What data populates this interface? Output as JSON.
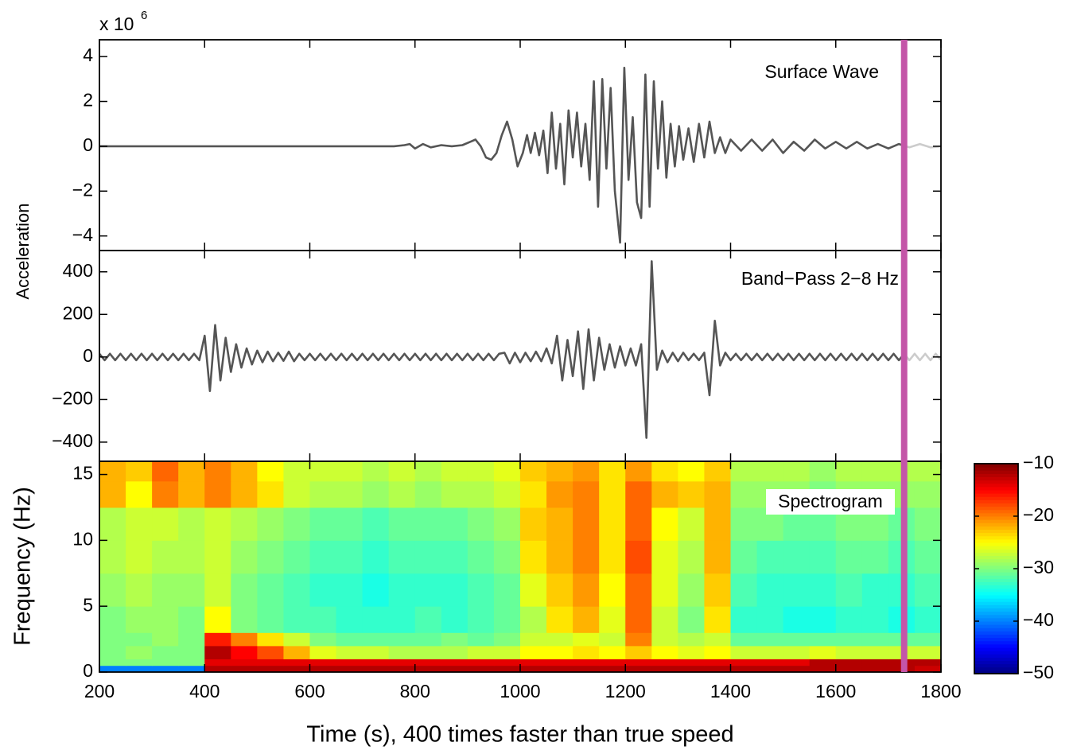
{
  "chart_data": [
    {
      "type": "line",
      "label": "Surface Wave",
      "ylabel": "Acceleration",
      "y_scale_base": "x 10",
      "y_scale_exponent": "6",
      "color": "#555555",
      "future_color": "#cccccc",
      "ylim": [
        -4.65,
        4.75
      ],
      "yticks": [
        {
          "value": -4,
          "label": "−4"
        },
        {
          "value": -2,
          "label": "−2"
        },
        0,
        2,
        4
      ],
      "x": [
        200,
        400,
        600,
        760,
        780,
        790,
        800,
        815,
        830,
        850,
        870,
        890,
        905,
        915,
        925,
        935,
        945,
        955,
        965,
        975,
        985,
        995,
        1005,
        1013,
        1020,
        1028,
        1036,
        1044,
        1052,
        1060,
        1068,
        1076,
        1084,
        1092,
        1100,
        1108,
        1116,
        1124,
        1132,
        1140,
        1148,
        1156,
        1164,
        1172,
        1180,
        1190,
        1198,
        1206,
        1214,
        1222,
        1230,
        1238,
        1246,
        1254,
        1262,
        1270,
        1278,
        1286,
        1294,
        1302,
        1310,
        1320,
        1330,
        1340,
        1350,
        1360,
        1370,
        1380,
        1390,
        1400,
        1420,
        1440,
        1460,
        1480,
        1500,
        1520,
        1540,
        1560,
        1580,
        1600,
        1620,
        1640,
        1660,
        1680,
        1700,
        1720,
        1740,
        1760,
        1780,
        1800
      ],
      "values": [
        0,
        0,
        0,
        0,
        0.05,
        0.1,
        -0.1,
        0.1,
        -0.05,
        0.05,
        0,
        0.05,
        0.2,
        0.3,
        0,
        -0.5,
        -0.6,
        -0.3,
        0.5,
        1.1,
        0.3,
        -0.9,
        -0.3,
        0.5,
        -0.3,
        0.6,
        -0.4,
        0.7,
        -1.2,
        1.5,
        -1.0,
        1.0,
        -1.7,
        1.6,
        -0.5,
        1.5,
        -0.9,
        1.0,
        -1.5,
        2.9,
        -2.7,
        3.0,
        -1.0,
        2.6,
        -2.0,
        -4.3,
        3.5,
        -1.5,
        1.3,
        -2.5,
        -3.2,
        3.2,
        -2.7,
        2.9,
        -1.0,
        2.0,
        -1.4,
        1.0,
        -0.9,
        0.9,
        -0.6,
        0.8,
        -0.7,
        1.0,
        -0.5,
        1.1,
        -0.3,
        0.4,
        -0.3,
        0.3,
        -0.2,
        0.3,
        -0.2,
        0.3,
        -0.3,
        0.2,
        -0.2,
        0.3,
        -0.1,
        0.2,
        -0.1,
        0.2,
        -0.1,
        0.1,
        -0.1,
        0.1,
        -0.05,
        0.1,
        -0.05,
        0
      ]
    },
    {
      "type": "line",
      "label": "Band−Pass 2−8 Hz",
      "color": "#555555",
      "future_color": "#cccccc",
      "ylim": [
        -490,
        500
      ],
      "yticks": [
        {
          "value": -400,
          "label": "−400"
        },
        {
          "value": -200,
          "label": "−200"
        },
        0,
        200,
        400
      ],
      "x": [
        200,
        210,
        220,
        230,
        240,
        250,
        260,
        270,
        280,
        290,
        300,
        310,
        320,
        330,
        340,
        350,
        360,
        370,
        380,
        390,
        400,
        410,
        420,
        430,
        440,
        450,
        460,
        470,
        480,
        490,
        500,
        510,
        520,
        530,
        540,
        550,
        560,
        570,
        580,
        590,
        600,
        610,
        620,
        630,
        640,
        650,
        660,
        670,
        680,
        690,
        700,
        710,
        720,
        730,
        740,
        750,
        760,
        770,
        780,
        790,
        800,
        810,
        820,
        830,
        840,
        850,
        860,
        870,
        880,
        890,
        900,
        910,
        920,
        930,
        940,
        950,
        960,
        970,
        980,
        990,
        1000,
        1010,
        1020,
        1030,
        1040,
        1050,
        1060,
        1070,
        1080,
        1090,
        1100,
        1110,
        1120,
        1130,
        1140,
        1150,
        1160,
        1170,
        1180,
        1190,
        1200,
        1210,
        1220,
        1230,
        1240,
        1250,
        1260,
        1270,
        1280,
        1290,
        1300,
        1310,
        1320,
        1330,
        1340,
        1350,
        1360,
        1370,
        1380,
        1390,
        1400,
        1410,
        1420,
        1430,
        1440,
        1450,
        1460,
        1470,
        1480,
        1490,
        1500,
        1510,
        1520,
        1530,
        1540,
        1550,
        1560,
        1570,
        1580,
        1590,
        1600,
        1610,
        1620,
        1630,
        1640,
        1650,
        1660,
        1670,
        1680,
        1690,
        1700,
        1710,
        1720,
        1730,
        1740,
        1750,
        1760,
        1770,
        1780,
        1790,
        1800
      ],
      "values": [
        15,
        -15,
        15,
        -15,
        15,
        -15,
        15,
        -15,
        15,
        -15,
        15,
        -15,
        15,
        -15,
        15,
        -15,
        15,
        -15,
        15,
        -15,
        100,
        -160,
        150,
        -110,
        90,
        -70,
        60,
        -50,
        40,
        -35,
        30,
        -25,
        25,
        -20,
        20,
        -18,
        25,
        -20,
        15,
        -15,
        15,
        -15,
        15,
        -15,
        15,
        -15,
        15,
        -15,
        15,
        -15,
        15,
        -15,
        15,
        -15,
        15,
        -15,
        15,
        -15,
        15,
        -15,
        15,
        -15,
        15,
        -15,
        15,
        -15,
        15,
        -15,
        15,
        -15,
        15,
        -15,
        15,
        -15,
        15,
        -15,
        15,
        20,
        -30,
        20,
        -25,
        20,
        -20,
        25,
        -20,
        40,
        -30,
        100,
        -110,
        80,
        -90,
        120,
        -150,
        130,
        -110,
        90,
        -60,
        60,
        -50,
        50,
        -40,
        40,
        -40,
        60,
        -380,
        450,
        -60,
        30,
        -25,
        20,
        -20,
        20,
        -15,
        15,
        -15,
        20,
        -180,
        170,
        -40,
        20,
        -15,
        15,
        -15,
        15,
        -15,
        15,
        -15,
        15,
        -15,
        15,
        -15,
        15,
        -15,
        15,
        -15,
        15,
        -15,
        15,
        -15,
        15,
        -15,
        15,
        -15,
        15,
        -15,
        15,
        -15,
        15,
        -15,
        15,
        -15,
        15,
        -15,
        15,
        -15,
        15,
        -15,
        15,
        -15,
        15,
        -15
      ]
    },
    {
      "type": "heatmap",
      "label": "Spectrogram",
      "ylabel": "Frequency (Hz)",
      "xlabel": "Time (s), 400 times faster than true speed",
      "xlim": [
        200,
        1800
      ],
      "xticks": [
        200,
        400,
        600,
        800,
        1000,
        1200,
        1400,
        1600,
        1800
      ],
      "ylim": [
        0,
        16
      ],
      "yticks": [
        0,
        5,
        10,
        15
      ],
      "xbins": [
        200,
        250,
        300,
        350,
        400,
        450,
        500,
        550,
        600,
        650,
        700,
        750,
        800,
        850,
        900,
        950,
        1000,
        1050,
        1100,
        1150,
        1200,
        1250,
        1300,
        1350,
        1400,
        1450,
        1500,
        1550,
        1600,
        1650,
        1700,
        1750,
        1800
      ],
      "ybins": [
        0,
        0.5,
        1,
        2,
        3,
        5,
        7.5,
        10,
        12.5,
        14.5,
        16
      ],
      "z": [
        [
          -40,
          -40,
          -40,
          -40,
          -12,
          -12,
          -12,
          -12,
          -12,
          -12,
          -12,
          -12,
          -12,
          -12,
          -12,
          -12,
          -12,
          -12,
          -12,
          -12,
          -12,
          -12,
          -12,
          -12,
          -12,
          -12,
          -12,
          -12,
          -12,
          -12,
          -12,
          -13
        ],
        [
          -30,
          -30,
          -30,
          -30,
          -14,
          -14,
          -14,
          -14,
          -14,
          -14,
          -14,
          -14,
          -14,
          -14,
          -14,
          -14,
          -14,
          -14,
          -14,
          -14,
          -14,
          -14,
          -14,
          -14,
          -14,
          -14,
          -14,
          -12,
          -12,
          -12,
          -12,
          -12
        ],
        [
          -30,
          -29,
          -30,
          -30,
          -12,
          -15,
          -18,
          -22,
          -26,
          -27,
          -27,
          -28,
          -28,
          -28,
          -27,
          -27,
          -25,
          -25,
          -24,
          -25,
          -23,
          -25,
          -26,
          -25,
          -27,
          -27,
          -27,
          -26,
          -27,
          -27,
          -27,
          -27
        ],
        [
          -30,
          -30,
          -29,
          -30,
          -16,
          -20,
          -24,
          -27,
          -30,
          -31,
          -31,
          -31,
          -31,
          -30,
          -31,
          -30,
          -27,
          -27,
          -26,
          -27,
          -20,
          -27,
          -28,
          -27,
          -31,
          -31,
          -31,
          -31,
          -31,
          -31,
          -31,
          -31
        ],
        [
          -30,
          -29,
          -29,
          -30,
          -25,
          -30,
          -31,
          -32,
          -32,
          -33,
          -33,
          -33,
          -32,
          -33,
          -32,
          -31,
          -28,
          -24,
          -22,
          -26,
          -19,
          -27,
          -30,
          -24,
          -33,
          -33,
          -34,
          -34,
          -33,
          -33,
          -34,
          -33
        ],
        [
          -29,
          -28,
          -29,
          -29,
          -27,
          -30,
          -31,
          -32,
          -33,
          -33,
          -34,
          -33,
          -33,
          -33,
          -32,
          -31,
          -26,
          -23,
          -21,
          -25,
          -19,
          -26,
          -29,
          -23,
          -32,
          -33,
          -33,
          -33,
          -32,
          -33,
          -33,
          -32
        ],
        [
          -28,
          -27,
          -28,
          -28,
          -27,
          -29,
          -30,
          -31,
          -32,
          -32,
          -33,
          -32,
          -32,
          -32,
          -31,
          -30,
          -24,
          -22,
          -20,
          -24,
          -18,
          -26,
          -28,
          -22,
          -31,
          -32,
          -32,
          -32,
          -31,
          -31,
          -32,
          -31
        ],
        [
          -28,
          -27,
          -27,
          -28,
          -27,
          -28,
          -29,
          -30,
          -31,
          -31,
          -32,
          -31,
          -31,
          -31,
          -30,
          -29,
          -23,
          -22,
          -20,
          -24,
          -19,
          -25,
          -27,
          -22,
          -30,
          -30,
          -31,
          -31,
          -30,
          -30,
          -31,
          -30
        ],
        [
          -22,
          -25,
          -20,
          -22,
          -20,
          -22,
          -24,
          -27,
          -28,
          -28,
          -29,
          -28,
          -29,
          -28,
          -28,
          -27,
          -24,
          -21,
          -20,
          -24,
          -19,
          -22,
          -23,
          -22,
          -29,
          -29,
          -29,
          -30,
          -29,
          -29,
          -29,
          -29
        ],
        [
          -22,
          -23,
          -19,
          -22,
          -20,
          -22,
          -25,
          -27,
          -27,
          -27,
          -28,
          -27,
          -28,
          -27,
          -27,
          -26,
          -23,
          -22,
          -21,
          -24,
          -21,
          -24,
          -25,
          -23,
          -28,
          -28,
          -28,
          -29,
          -28,
          -28,
          -28,
          -28
        ]
      ],
      "colormap": "jet",
      "colorbar": {
        "lim": [
          -50,
          -10
        ],
        "ticks": [
          {
            "value": -50,
            "label": "−50"
          },
          {
            "value": -40,
            "label": "−40"
          },
          {
            "value": -30,
            "label": "−30"
          },
          {
            "value": -20,
            "label": "−20"
          },
          {
            "value": -10,
            "label": "−10"
          }
        ]
      }
    }
  ],
  "cursor": {
    "x": 1730,
    "color": "#c455a8"
  }
}
